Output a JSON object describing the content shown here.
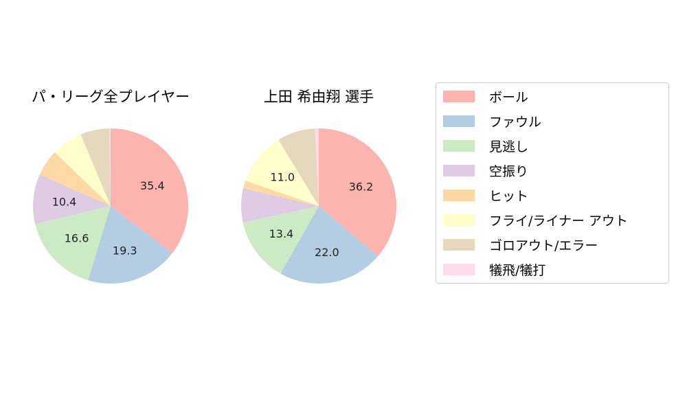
{
  "chart_data": [
    {
      "type": "pie",
      "title": "パ・リーグ全プレイヤー",
      "slices": [
        {
          "name": "ボール",
          "value": 35.4,
          "label": "35.4"
        },
        {
          "name": "ファウル",
          "value": 19.3,
          "label": "19.3"
        },
        {
          "name": "見逃し",
          "value": 16.6,
          "label": "16.6"
        },
        {
          "name": "空振り",
          "value": 10.4,
          "label": "10.4"
        },
        {
          "name": "ヒット",
          "value": 5.5,
          "label": ""
        },
        {
          "name": "フライ/ライナー アウト",
          "value": 6.5,
          "label": ""
        },
        {
          "name": "ゴロアウト/エラー",
          "value": 6.0,
          "label": ""
        },
        {
          "name": "犠飛/犠打",
          "value": 0.3,
          "label": ""
        }
      ]
    },
    {
      "type": "pie",
      "title": "上田 希由翔  選手",
      "slices": [
        {
          "name": "ボール",
          "value": 36.2,
          "label": "36.2"
        },
        {
          "name": "ファウル",
          "value": 22.0,
          "label": "22.0"
        },
        {
          "name": "見逃し",
          "value": 13.4,
          "label": "13.4"
        },
        {
          "name": "空振り",
          "value": 7.1,
          "label": ""
        },
        {
          "name": "ヒット",
          "value": 1.6,
          "label": ""
        },
        {
          "name": "フライ/ライナー アウト",
          "value": 11.0,
          "label": "11.0"
        },
        {
          "name": "ゴロアウト/エラー",
          "value": 7.9,
          "label": ""
        },
        {
          "name": "犠飛/犠打",
          "value": 0.8,
          "label": ""
        }
      ]
    }
  ],
  "legend": {
    "placement": "right",
    "items": [
      {
        "name": "ボール",
        "color": "#fbb4ae"
      },
      {
        "name": "ファウル",
        "color": "#b3cde3"
      },
      {
        "name": "見逃し",
        "color": "#ccebc5"
      },
      {
        "name": "空振り",
        "color": "#decbe4"
      },
      {
        "name": "ヒット",
        "color": "#fed9a6"
      },
      {
        "name": "フライ/ライナー アウト",
        "color": "#ffffcc"
      },
      {
        "name": "ゴロアウト/エラー",
        "color": "#e5d8bd"
      },
      {
        "name": "犠飛/犠打",
        "color": "#fddaec"
      }
    ]
  }
}
